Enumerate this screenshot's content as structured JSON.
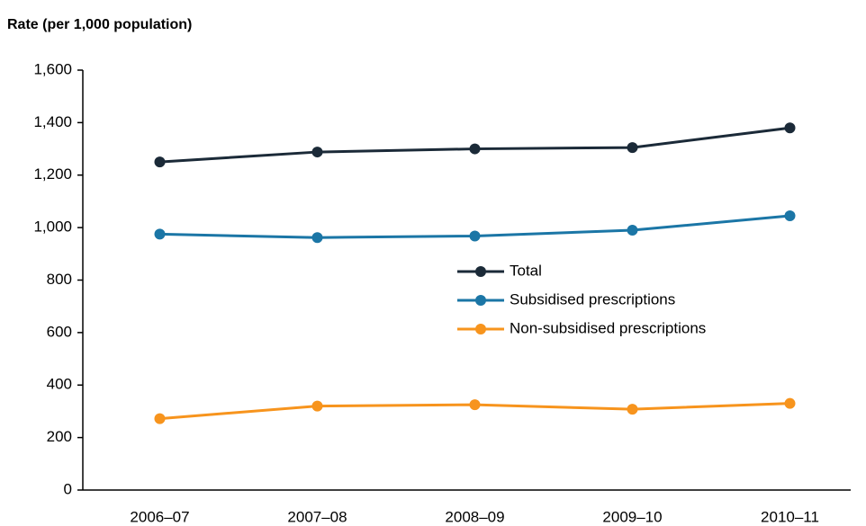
{
  "chart_data": {
    "type": "line",
    "y_axis_label": "Rate (per 1,000 population)",
    "categories": [
      "2006–07",
      "2007–08",
      "2008–09",
      "2009–10",
      "2010–11"
    ],
    "series": [
      {
        "name": "Total",
        "color": "#1b2a38",
        "values": [
          1250,
          1288,
          1300,
          1305,
          1380
        ]
      },
      {
        "name": "Subsidised prescriptions",
        "color": "#1b76a6",
        "values": [
          975,
          962,
          968,
          990,
          1045
        ]
      },
      {
        "name": "Non-subsidised prescriptions",
        "color": "#f7941d",
        "values": [
          272,
          320,
          325,
          308,
          330
        ]
      }
    ],
    "ylim": [
      0,
      1600
    ],
    "yticks": [
      0,
      200,
      400,
      600,
      800,
      {
        "value": 1000,
        "label": "1,000"
      },
      {
        "value": 1200,
        "label": "1,200"
      },
      {
        "value": 1400,
        "label": "1,400"
      },
      {
        "value": 1600,
        "label": "1,600"
      }
    ],
    "grid": false,
    "legend": "center"
  }
}
